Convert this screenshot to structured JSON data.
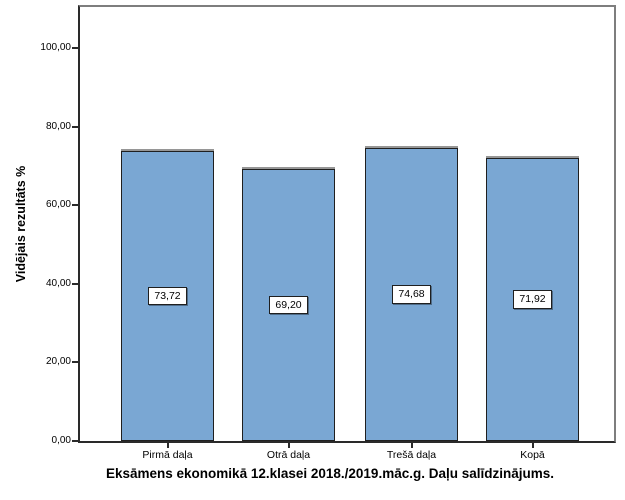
{
  "figure": {
    "background": "#ffffff"
  },
  "chart_data": {
    "type": "bar",
    "title": "Eksāmens ekonomikā 12.klasei 2018./2019.māc.g. Daļu salīdzinājums.",
    "ylabel": "Vidējais rezultāts %",
    "xlabel": "",
    "categories": [
      "Pirmā daļa",
      "Otrā daļa",
      "Trešā daļa",
      "Kopā"
    ],
    "values": [
      73.72,
      69.2,
      74.68,
      71.92
    ],
    "value_labels": [
      "73,72",
      "69,20",
      "74,68",
      "71,92"
    ],
    "ylim": [
      0,
      100
    ],
    "yticks": [
      0,
      20,
      40,
      60,
      80,
      100
    ],
    "ytick_labels": [
      "0,00",
      "20,00",
      "40,00",
      "60,00",
      "80,00",
      "100,00"
    ],
    "grid": false,
    "legend": false,
    "bar_color": "#7AA7D3",
    "bar_border_color": "#1f1f1f",
    "frame_color": "#7e7e7e",
    "axis_color": "#2a2a2a"
  }
}
